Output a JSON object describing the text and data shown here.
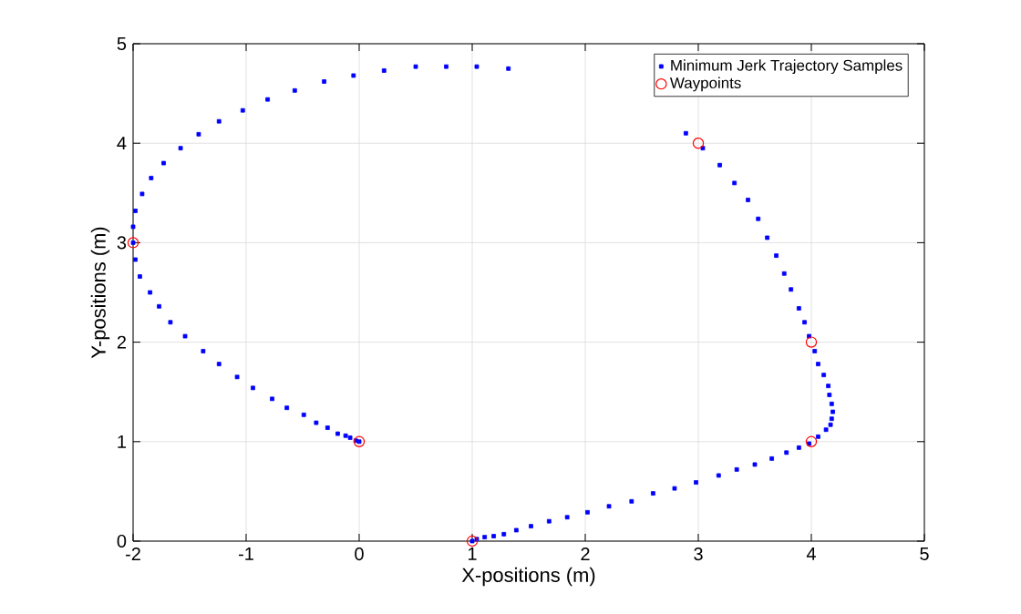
{
  "chart_data": {
    "type": "scatter",
    "xlabel": "X-positions (m)",
    "ylabel": "Y-positions (m)",
    "xlim": [
      -2,
      5
    ],
    "ylim": [
      0,
      5
    ],
    "xticks": [
      -2,
      -1,
      0,
      1,
      2,
      3,
      4,
      5
    ],
    "yticks": [
      0,
      1,
      2,
      3,
      4,
      5
    ],
    "grid": true,
    "legend": "top right",
    "series": [
      {
        "name": "Minimum Jerk Trajectory Samples",
        "color": "#0000ff",
        "marker": "square",
        "x": [
          1.0,
          1.04,
          1.11,
          1.19,
          1.28,
          1.39,
          1.52,
          1.68,
          1.84,
          2.02,
          2.21,
          2.41,
          2.6,
          2.79,
          2.98,
          3.18,
          3.34,
          3.5,
          3.65,
          3.78,
          3.89,
          3.98,
          4.06,
          4.13,
          4.17,
          4.18,
          4.19,
          4.18,
          4.16,
          4.15,
          4.11,
          4.06,
          4.03,
          3.98,
          3.94,
          3.89,
          3.82,
          3.76,
          3.69,
          3.61,
          3.53,
          3.44,
          3.32,
          3.19,
          3.04,
          2.89,
          1.32,
          1.04,
          0.77,
          0.5,
          0.22,
          -0.05,
          -0.31,
          -0.57,
          -0.81,
          -1.03,
          -1.24,
          -1.42,
          -1.58,
          -1.73,
          -1.84,
          -1.92,
          -1.98,
          -2.0,
          -2.0,
          -1.98,
          -1.94,
          -1.85,
          -1.77,
          -1.67,
          -1.54,
          -1.38,
          -1.24,
          -1.08,
          -0.94,
          -0.77,
          -0.64,
          -0.49,
          -0.38,
          -0.28,
          -0.19,
          -0.12,
          -0.08,
          -0.03,
          0.0
        ],
        "values": [
          0.0,
          0.02,
          0.04,
          0.05,
          0.07,
          0.11,
          0.15,
          0.2,
          0.24,
          0.29,
          0.35,
          0.4,
          0.48,
          0.53,
          0.59,
          0.66,
          0.72,
          0.77,
          0.83,
          0.89,
          0.94,
          0.98,
          1.05,
          1.12,
          1.17,
          1.23,
          1.3,
          1.38,
          1.47,
          1.56,
          1.67,
          1.78,
          1.91,
          2.06,
          2.2,
          2.34,
          2.53,
          2.69,
          2.87,
          3.05,
          3.24,
          3.43,
          3.6,
          3.78,
          3.95,
          4.1,
          4.75,
          4.77,
          4.77,
          4.77,
          4.73,
          4.68,
          4.62,
          4.53,
          4.44,
          4.33,
          4.22,
          4.09,
          3.95,
          3.8,
          3.65,
          3.49,
          3.32,
          3.16,
          3.0,
          2.83,
          2.66,
          2.5,
          2.36,
          2.2,
          2.06,
          1.91,
          1.78,
          1.65,
          1.54,
          1.43,
          1.34,
          1.27,
          1.19,
          1.14,
          1.08,
          1.06,
          1.04,
          1.01,
          1.0
        ]
      },
      {
        "name": "Waypoints",
        "color": "#ff0000",
        "marker": "circle",
        "x": [
          1,
          4,
          4,
          3,
          -2,
          0
        ],
        "values": [
          0,
          1,
          2,
          4,
          3,
          1
        ]
      }
    ]
  }
}
